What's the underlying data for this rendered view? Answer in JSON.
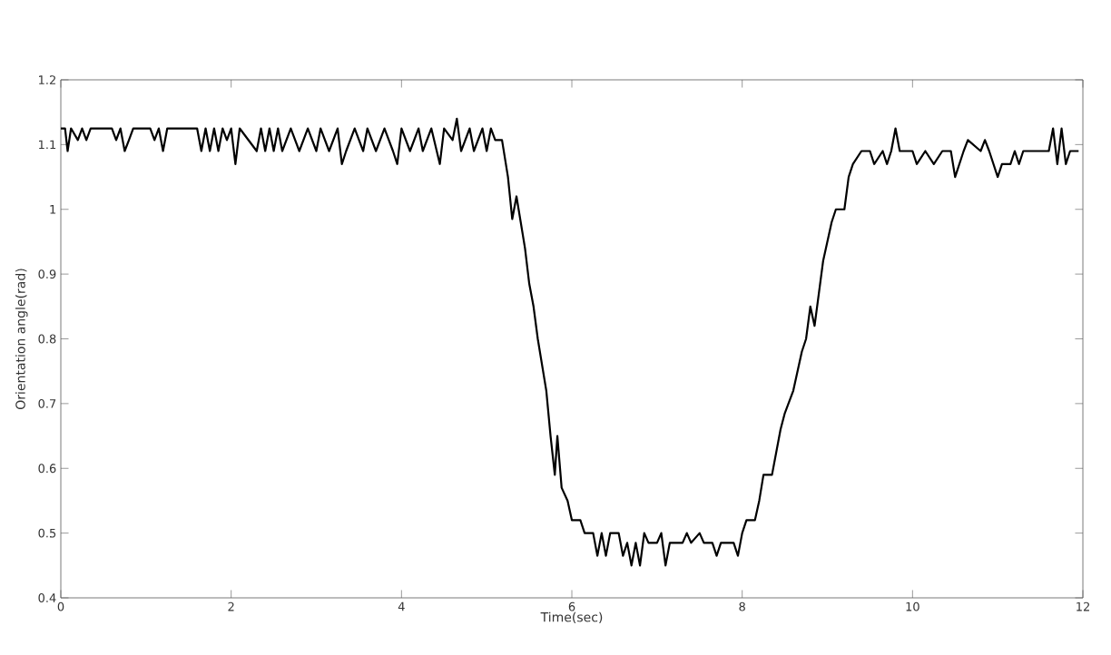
{
  "chart_data": {
    "type": "line",
    "xlabel": "Time(sec)",
    "ylabel": "Orientation angle(rad)",
    "xlim": [
      0,
      12
    ],
    "ylim": [
      0.4,
      1.2
    ],
    "xticks": [
      0,
      2,
      4,
      6,
      8,
      10,
      12
    ],
    "yticks": [
      0.4,
      0.5,
      0.6,
      0.7,
      0.8,
      0.9,
      1,
      1.1,
      1.2
    ],
    "grid": false,
    "marker": "none",
    "line_style": "solid",
    "color": "#000000",
    "x": [
      0,
      0.05,
      0.08,
      0.12,
      0.2,
      0.25,
      0.3,
      0.35,
      0.6,
      0.65,
      0.7,
      0.75,
      0.8,
      0.85,
      1.05,
      1.1,
      1.15,
      1.2,
      1.25,
      1.6,
      1.65,
      1.7,
      1.75,
      1.8,
      1.85,
      1.9,
      1.95,
      2.0,
      2.05,
      2.1,
      2.3,
      2.35,
      2.4,
      2.45,
      2.5,
      2.55,
      2.6,
      2.7,
      2.8,
      2.9,
      3.0,
      3.05,
      3.15,
      3.25,
      3.3,
      3.35,
      3.45,
      3.55,
      3.6,
      3.7,
      3.8,
      3.9,
      3.95,
      4.0,
      4.1,
      4.2,
      4.25,
      4.35,
      4.45,
      4.5,
      4.6,
      4.65,
      4.7,
      4.8,
      4.85,
      4.95,
      5.0,
      5.05,
      5.1,
      5.18,
      5.25,
      5.3,
      5.35,
      5.4,
      5.45,
      5.5,
      5.55,
      5.6,
      5.7,
      5.75,
      5.8,
      5.83,
      5.88,
      5.95,
      6.0,
      6.1,
      6.15,
      6.25,
      6.3,
      6.35,
      6.4,
      6.45,
      6.55,
      6.6,
      6.65,
      6.7,
      6.75,
      6.8,
      6.85,
      6.9,
      7.0,
      7.05,
      7.1,
      7.15,
      7.3,
      7.35,
      7.4,
      7.5,
      7.55,
      7.65,
      7.7,
      7.75,
      7.9,
      7.95,
      8.0,
      8.05,
      8.15,
      8.2,
      8.25,
      8.35,
      8.45,
      8.5,
      8.6,
      8.7,
      8.75,
      8.8,
      8.85,
      8.95,
      9.05,
      9.1,
      9.2,
      9.25,
      9.3,
      9.4,
      9.5,
      9.55,
      9.65,
      9.7,
      9.75,
      9.8,
      9.85,
      10.0,
      10.05,
      10.15,
      10.25,
      10.35,
      10.45,
      10.5,
      10.6,
      10.65,
      10.8,
      10.85,
      10.9,
      11.0,
      11.05,
      11.15,
      11.2,
      11.25,
      11.3,
      11.6,
      11.65,
      11.7,
      11.75,
      11.8,
      11.85,
      11.95
    ],
    "values": [
      1.125,
      1.125,
      1.09,
      1.125,
      1.107,
      1.125,
      1.107,
      1.125,
      1.125,
      1.107,
      1.125,
      1.09,
      1.107,
      1.125,
      1.125,
      1.107,
      1.125,
      1.09,
      1.125,
      1.125,
      1.09,
      1.125,
      1.09,
      1.125,
      1.09,
      1.125,
      1.107,
      1.125,
      1.07,
      1.125,
      1.09,
      1.125,
      1.09,
      1.125,
      1.09,
      1.125,
      1.09,
      1.125,
      1.09,
      1.125,
      1.09,
      1.125,
      1.09,
      1.125,
      1.07,
      1.09,
      1.125,
      1.09,
      1.125,
      1.09,
      1.125,
      1.09,
      1.07,
      1.125,
      1.09,
      1.125,
      1.09,
      1.125,
      1.07,
      1.125,
      1.107,
      1.14,
      1.09,
      1.125,
      1.09,
      1.125,
      1.09,
      1.125,
      1.107,
      1.107,
      1.05,
      0.985,
      1.02,
      0.98,
      0.94,
      0.885,
      0.85,
      0.8,
      0.72,
      0.65,
      0.59,
      0.65,
      0.57,
      0.55,
      0.52,
      0.52,
      0.5,
      0.5,
      0.465,
      0.5,
      0.465,
      0.5,
      0.5,
      0.465,
      0.485,
      0.45,
      0.485,
      0.45,
      0.5,
      0.485,
      0.485,
      0.5,
      0.45,
      0.485,
      0.485,
      0.5,
      0.485,
      0.5,
      0.485,
      0.485,
      0.465,
      0.485,
      0.485,
      0.465,
      0.5,
      0.52,
      0.52,
      0.55,
      0.59,
      0.59,
      0.66,
      0.685,
      0.72,
      0.78,
      0.8,
      0.85,
      0.82,
      0.92,
      0.98,
      1.0,
      1.0,
      1.05,
      1.07,
      1.09,
      1.09,
      1.07,
      1.09,
      1.07,
      1.09,
      1.125,
      1.09,
      1.09,
      1.07,
      1.09,
      1.07,
      1.09,
      1.09,
      1.05,
      1.09,
      1.107,
      1.09,
      1.107,
      1.09,
      1.05,
      1.07,
      1.07,
      1.09,
      1.07,
      1.09,
      1.09,
      1.125,
      1.07,
      1.125,
      1.07,
      1.09,
      1.09
    ]
  }
}
